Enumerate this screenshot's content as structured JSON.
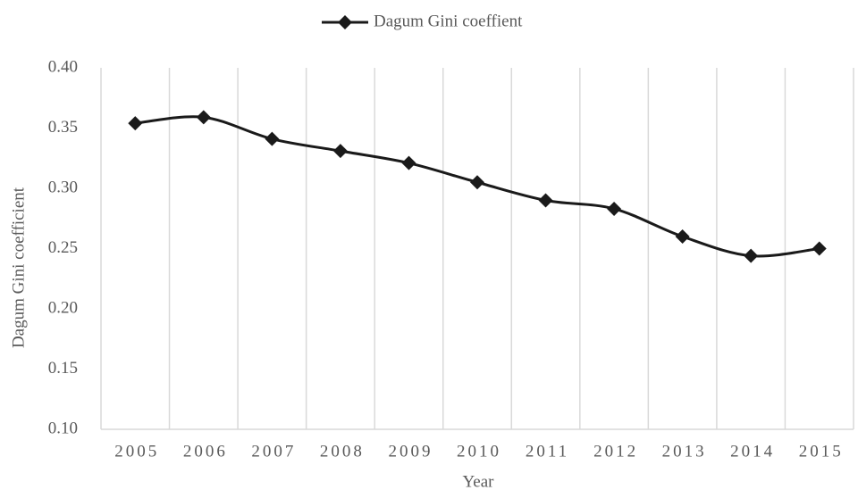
{
  "chart_data": {
    "type": "line",
    "x_label": "Year",
    "y_label": "Dagum Gini coefficient",
    "categories": [
      "2005",
      "2006",
      "2007",
      "2008",
      "2009",
      "2010",
      "2011",
      "2012",
      "2013",
      "2014",
      "2015"
    ],
    "series": [
      {
        "name": "Dagum Gini coeffient",
        "color": "#1a1a1a",
        "values": [
          0.354,
          0.359,
          0.341,
          0.331,
          0.321,
          0.305,
          0.29,
          0.283,
          0.26,
          0.244,
          0.25
        ]
      }
    ],
    "ylim": [
      0.1,
      0.4
    ],
    "yticks": [
      {
        "value": 0.1,
        "label": "0.10"
      },
      {
        "value": 0.15,
        "label": "0.15"
      },
      {
        "value": 0.2,
        "label": "0.20"
      },
      {
        "value": 0.25,
        "label": "0.25"
      },
      {
        "value": 0.3,
        "label": "0.30"
      },
      {
        "value": 0.35,
        "label": "0.35"
      },
      {
        "value": 0.4,
        "label": "0.40"
      }
    ],
    "smooth": true,
    "legend": "top",
    "category_separators": true
  }
}
